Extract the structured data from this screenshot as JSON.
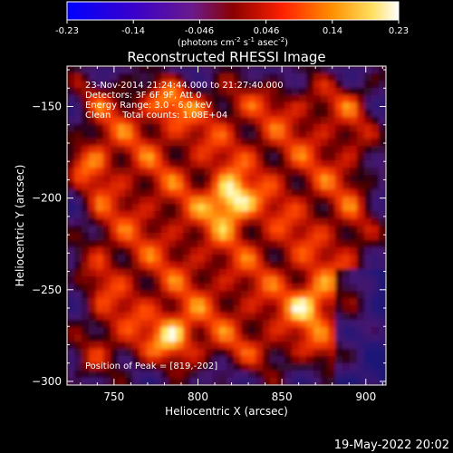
{
  "chart_data": {
    "type": "heatmap",
    "title": "Reconstructed RHESSI Image",
    "xlabel": "Heliocentric X (arcsec)",
    "ylabel": "Heliocentric Y (arcsec)",
    "xlim": [
      722,
      912
    ],
    "ylim": [
      -302,
      -128
    ],
    "x_ticks": [
      750,
      800,
      850,
      900
    ],
    "y_ticks": [
      -150,
      -200,
      -250,
      -300
    ],
    "colorbar": {
      "range": [
        -0.23,
        0.23
      ],
      "ticks": [
        "-0.23",
        "-0.14",
        "-0.046",
        "0.046",
        "0.14",
        "0.23"
      ],
      "unit_base": "(photons cm",
      "unit_exp1": "-2",
      "unit_mid": " s",
      "unit_exp2": "-1",
      "unit_mid2": " asec",
      "unit_exp3": "-2",
      "unit_end": ")"
    },
    "annotations": [
      "23-Nov-2014 21:24:44.000 to 21:27:40.000",
      "Detectors: 3F 6F 9F, Att 0",
      "Energy Range: 3.0 - 6.0 keV",
      "Clean    Total counts: 1.08E+04"
    ],
    "peak_label": "Position of Peak = [819,-202]",
    "sources": [
      {
        "x": 819,
        "y": -202,
        "flux": 0.23
      },
      {
        "x": 868,
        "y": -257,
        "flux": 0.16
      },
      {
        "x": 786,
        "y": -273,
        "flux": 0.15
      },
      {
        "x": 732,
        "y": -180,
        "flux": 0.13
      },
      {
        "x": 783,
        "y": -148,
        "flux": 0.1
      }
    ],
    "background_level": 0.05
  },
  "timestamp": "19-May-2022 20:02",
  "colors": {
    "background": "#000000",
    "text": "#ffffff"
  }
}
